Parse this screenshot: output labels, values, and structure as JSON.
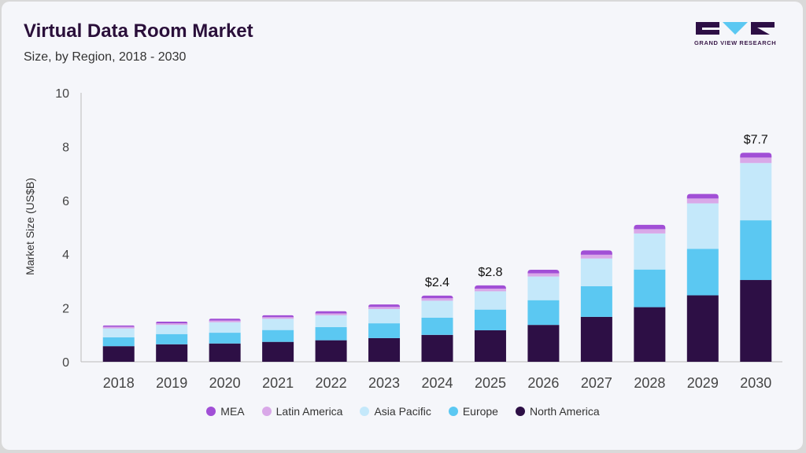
{
  "header": {
    "title": "Virtual Data Room Market",
    "subtitle": "Size, by Region, 2018 - 2030"
  },
  "logo": {
    "text": "GRAND VIEW RESEARCH"
  },
  "chart_data": {
    "type": "bar",
    "stacked": true,
    "categories": [
      "2018",
      "2019",
      "2020",
      "2021",
      "2022",
      "2023",
      "2024",
      "2025",
      "2026",
      "2027",
      "2028",
      "2029",
      "2030"
    ],
    "series": [
      {
        "name": "North America",
        "color": "#2d0f45",
        "values": [
          0.58,
          0.65,
          0.68,
          0.74,
          0.8,
          0.88,
          1.0,
          1.17,
          1.37,
          1.67,
          2.03,
          2.47,
          3.04
        ]
      },
      {
        "name": "Europe",
        "color": "#5bc8f2",
        "values": [
          0.33,
          0.38,
          0.4,
          0.44,
          0.49,
          0.55,
          0.64,
          0.77,
          0.92,
          1.14,
          1.4,
          1.73,
          2.22
        ]
      },
      {
        "name": "Asia Pacific",
        "color": "#c4e8fa",
        "values": [
          0.33,
          0.34,
          0.39,
          0.42,
          0.44,
          0.53,
          0.63,
          0.68,
          0.88,
          1.03,
          1.34,
          1.69,
          2.13
        ]
      },
      {
        "name": "Latin America",
        "color": "#d9a8e8",
        "values": [
          0.06,
          0.06,
          0.06,
          0.06,
          0.07,
          0.08,
          0.09,
          0.1,
          0.12,
          0.14,
          0.16,
          0.18,
          0.2
        ]
      },
      {
        "name": "MEA",
        "color": "#a14fd6",
        "values": [
          0.05,
          0.06,
          0.07,
          0.07,
          0.08,
          0.09,
          0.1,
          0.12,
          0.13,
          0.16,
          0.16,
          0.17,
          0.18
        ]
      }
    ],
    "legend_order": [
      "MEA",
      "Latin America",
      "Asia Pacific",
      "Europe",
      "North America"
    ],
    "annotations": [
      {
        "category": "2024",
        "text": "$2.4"
      },
      {
        "category": "2025",
        "text": "$2.8"
      },
      {
        "category": "2030",
        "text": "$7.7"
      }
    ],
    "ylabel": "Market Size (US$B)",
    "xlabel": "",
    "ylim": [
      0,
      10
    ],
    "yticks": [
      0,
      2,
      4,
      6,
      8,
      10
    ],
    "grid": false,
    "legend_position": "bottom"
  }
}
